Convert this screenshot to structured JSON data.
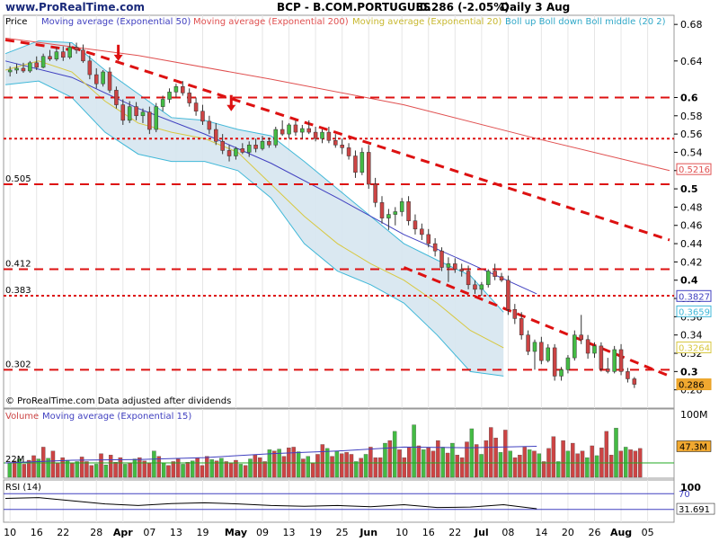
{
  "header": {
    "site": "www.ProRealTime.com",
    "title": "BCP - B.COM.PORTUGUES",
    "last": "0.286 (-2.05%)",
    "period": "Daily 3 Aug"
  },
  "footer_note": "© ProRealTime.com  Data adjusted after dividends",
  "colors": {
    "candle_up": "#44bb44",
    "candle_down": "#cc4444",
    "ema50": "#4040c0",
    "ema200": "#e05050",
    "ema20": "#d8c840",
    "bollinger": "#40b8d8",
    "band_fill": "#d6e6f0",
    "support_line": "#dd1111",
    "grid_panel": "#c8c8c8"
  },
  "chart_data": [
    {
      "type": "candlestick",
      "panel": "price",
      "title": "BCP - B.COM.PORTUGUES",
      "legend": [
        "Price",
        "Moving average (Exponential 50)",
        "Moving average (Exponential 200)",
        "Moving average (Exponential 20)",
        "Boll up Boll down Boll middle (20 2)"
      ],
      "ylim": [
        0.26,
        0.69
      ],
      "yticks": [
        0.68,
        0.64,
        0.6,
        0.58,
        0.56,
        0.54,
        0.52,
        0.5,
        0.48,
        0.46,
        0.44,
        0.42,
        0.4,
        0.38,
        0.36,
        0.34,
        0.32,
        0.3,
        0.28
      ],
      "ytick_labels": [
        "0.68",
        "0.64",
        "0.6",
        "0.58",
        "0.56",
        "0.54",
        "0.52",
        "0.5",
        "0.48",
        "0.46",
        "0.44",
        "0.42",
        "0.4",
        "0.38",
        "0.36",
        "0.34",
        "0.32",
        "0.3",
        "0.28"
      ],
      "xtick_labels": [
        "10",
        "16",
        "22",
        "28",
        "Apr",
        "07",
        "13",
        "19",
        "May",
        "09",
        "13",
        "19",
        "25",
        "Jun",
        "10",
        "16",
        "22",
        "Jul",
        "08",
        "14",
        "20",
        "26",
        "Aug",
        "05"
      ],
      "candles": [
        [
          0.628,
          0.634,
          0.623,
          0.63
        ],
        [
          0.63,
          0.637,
          0.626,
          0.632
        ],
        [
          0.632,
          0.638,
          0.627,
          0.629
        ],
        [
          0.629,
          0.64,
          0.627,
          0.638
        ],
        [
          0.638,
          0.645,
          0.63,
          0.633
        ],
        [
          0.633,
          0.648,
          0.632,
          0.645
        ],
        [
          0.645,
          0.652,
          0.64,
          0.642
        ],
        [
          0.642,
          0.655,
          0.64,
          0.65
        ],
        [
          0.65,
          0.656,
          0.64,
          0.644
        ],
        [
          0.644,
          0.66,
          0.642,
          0.655
        ],
        [
          0.655,
          0.66,
          0.648,
          0.652
        ],
        [
          0.652,
          0.658,
          0.638,
          0.64
        ],
        [
          0.64,
          0.646,
          0.62,
          0.625
        ],
        [
          0.625,
          0.632,
          0.61,
          0.615
        ],
        [
          0.615,
          0.63,
          0.612,
          0.628
        ],
        [
          0.628,
          0.633,
          0.605,
          0.608
        ],
        [
          0.608,
          0.612,
          0.588,
          0.592
        ],
        [
          0.592,
          0.598,
          0.57,
          0.575
        ],
        [
          0.575,
          0.596,
          0.572,
          0.59
        ],
        [
          0.59,
          0.595,
          0.575,
          0.58
        ],
        [
          0.58,
          0.588,
          0.572,
          0.584
        ],
        [
          0.584,
          0.59,
          0.56,
          0.565
        ],
        [
          0.565,
          0.594,
          0.562,
          0.59
        ],
        [
          0.59,
          0.602,
          0.585,
          0.598
        ],
        [
          0.598,
          0.61,
          0.594,
          0.606
        ],
        [
          0.606,
          0.615,
          0.6,
          0.612
        ],
        [
          0.612,
          0.618,
          0.602,
          0.605
        ],
        [
          0.605,
          0.61,
          0.59,
          0.594
        ],
        [
          0.594,
          0.6,
          0.58,
          0.585
        ],
        [
          0.585,
          0.592,
          0.57,
          0.574
        ],
        [
          0.574,
          0.58,
          0.56,
          0.565
        ],
        [
          0.565,
          0.572,
          0.548,
          0.552
        ],
        [
          0.552,
          0.56,
          0.538,
          0.542
        ],
        [
          0.542,
          0.548,
          0.53,
          0.536
        ],
        [
          0.536,
          0.546,
          0.532,
          0.544
        ],
        [
          0.544,
          0.55,
          0.538,
          0.54
        ],
        [
          0.54,
          0.552,
          0.535,
          0.548
        ],
        [
          0.548,
          0.555,
          0.54,
          0.544
        ],
        [
          0.544,
          0.558,
          0.542,
          0.552
        ],
        [
          0.552,
          0.556,
          0.545,
          0.548
        ],
        [
          0.548,
          0.568,
          0.545,
          0.565
        ],
        [
          0.565,
          0.575,
          0.558,
          0.56
        ],
        [
          0.56,
          0.572,
          0.555,
          0.57
        ],
        [
          0.57,
          0.575,
          0.558,
          0.562
        ],
        [
          0.562,
          0.57,
          0.555,
          0.566
        ],
        [
          0.566,
          0.575,
          0.56,
          0.562
        ],
        [
          0.562,
          0.568,
          0.552,
          0.555
        ],
        [
          0.555,
          0.565,
          0.55,
          0.562
        ],
        [
          0.562,
          0.568,
          0.55,
          0.553
        ],
        [
          0.553,
          0.56,
          0.545,
          0.548
        ],
        [
          0.548,
          0.555,
          0.538,
          0.545
        ],
        [
          0.545,
          0.55,
          0.532,
          0.536
        ],
        [
          0.536,
          0.542,
          0.512,
          0.518
        ],
        [
          0.518,
          0.545,
          0.515,
          0.54
        ],
        [
          0.54,
          0.548,
          0.5,
          0.505
        ],
        [
          0.505,
          0.512,
          0.48,
          0.485
        ],
        [
          0.485,
          0.492,
          0.462,
          0.468
        ],
        [
          0.468,
          0.478,
          0.455,
          0.472
        ],
        [
          0.472,
          0.48,
          0.46,
          0.475
        ],
        [
          0.475,
          0.49,
          0.47,
          0.486
        ],
        [
          0.486,
          0.492,
          0.46,
          0.465
        ],
        [
          0.465,
          0.472,
          0.45,
          0.456
        ],
        [
          0.456,
          0.462,
          0.444,
          0.45
        ],
        [
          0.45,
          0.456,
          0.436,
          0.44
        ],
        [
          0.44,
          0.446,
          0.426,
          0.432
        ],
        [
          0.432,
          0.436,
          0.41,
          0.414
        ],
        [
          0.414,
          0.425,
          0.398,
          0.418
        ],
        [
          0.418,
          0.424,
          0.408,
          0.412
        ],
        [
          0.412,
          0.418,
          0.404,
          0.41
        ],
        [
          0.41,
          0.416,
          0.39,
          0.395
        ],
        [
          0.395,
          0.4,
          0.385,
          0.39
        ],
        [
          0.39,
          0.398,
          0.383,
          0.395
        ],
        [
          0.395,
          0.412,
          0.392,
          0.41
        ],
        [
          0.41,
          0.418,
          0.4,
          0.404
        ],
        [
          0.404,
          0.408,
          0.398,
          0.4
        ],
        [
          0.4,
          0.405,
          0.362,
          0.368
        ],
        [
          0.368,
          0.374,
          0.352,
          0.358
        ],
        [
          0.358,
          0.365,
          0.335,
          0.34
        ],
        [
          0.34,
          0.345,
          0.318,
          0.322
        ],
        [
          0.322,
          0.335,
          0.302,
          0.332
        ],
        [
          0.332,
          0.338,
          0.308,
          0.312
        ],
        [
          0.312,
          0.33,
          0.31,
          0.326
        ],
        [
          0.326,
          0.33,
          0.29,
          0.295
        ],
        [
          0.295,
          0.305,
          0.29,
          0.302
        ],
        [
          0.302,
          0.318,
          0.298,
          0.315
        ],
        [
          0.315,
          0.345,
          0.312,
          0.34
        ],
        [
          0.34,
          0.362,
          0.33,
          0.335
        ],
        [
          0.335,
          0.34,
          0.314,
          0.32
        ],
        [
          0.32,
          0.332,
          0.315,
          0.328
        ],
        [
          0.328,
          0.332,
          0.3,
          0.303
        ],
        [
          0.303,
          0.315,
          0.298,
          0.3
        ],
        [
          0.3,
          0.328,
          0.298,
          0.324
        ],
        [
          0.324,
          0.33,
          0.296,
          0.3
        ],
        [
          0.3,
          0.304,
          0.288,
          0.292
        ],
        [
          0.292,
          0.294,
          0.282,
          0.286
        ]
      ],
      "ema50": [
        [
          0,
          0.64
        ],
        [
          20,
          0.622
        ],
        [
          40,
          0.588
        ],
        [
          60,
          0.56
        ],
        [
          80,
          0.528
        ],
        [
          100,
          0.49
        ],
        [
          120,
          0.45
        ],
        [
          140,
          0.418
        ],
        [
          160,
          0.385
        ]
      ],
      "ema200": [
        [
          0,
          0.665
        ],
        [
          40,
          0.646
        ],
        [
          80,
          0.62
        ],
        [
          120,
          0.592
        ],
        [
          160,
          0.555
        ],
        [
          200,
          0.52
        ]
      ],
      "ema20": [
        [
          0,
          0.63
        ],
        [
          10,
          0.64
        ],
        [
          20,
          0.628
        ],
        [
          30,
          0.596
        ],
        [
          40,
          0.572
        ],
        [
          50,
          0.562
        ],
        [
          60,
          0.555
        ],
        [
          70,
          0.54
        ],
        [
          80,
          0.505
        ],
        [
          90,
          0.47
        ],
        [
          100,
          0.44
        ],
        [
          110,
          0.418
        ],
        [
          120,
          0.4
        ],
        [
          130,
          0.375
        ],
        [
          140,
          0.345
        ],
        [
          150,
          0.326
        ]
      ],
      "boll_up": [
        [
          0,
          0.648
        ],
        [
          10,
          0.662
        ],
        [
          20,
          0.66
        ],
        [
          30,
          0.63
        ],
        [
          40,
          0.604
        ],
        [
          50,
          0.578
        ],
        [
          60,
          0.575
        ],
        [
          70,
          0.565
        ],
        [
          80,
          0.558
        ],
        [
          90,
          0.53
        ],
        [
          100,
          0.5
        ],
        [
          110,
          0.47
        ],
        [
          120,
          0.44
        ],
        [
          130,
          0.422
        ],
        [
          140,
          0.405
        ],
        [
          150,
          0.365
        ]
      ],
      "boll_down": [
        [
          0,
          0.614
        ],
        [
          10,
          0.618
        ],
        [
          20,
          0.6
        ],
        [
          30,
          0.562
        ],
        [
          40,
          0.538
        ],
        [
          50,
          0.53
        ],
        [
          60,
          0.53
        ],
        [
          70,
          0.52
        ],
        [
          80,
          0.49
        ],
        [
          90,
          0.44
        ],
        [
          100,
          0.41
        ],
        [
          110,
          0.395
        ],
        [
          120,
          0.375
        ],
        [
          130,
          0.34
        ],
        [
          140,
          0.3
        ],
        [
          150,
          0.295
        ]
      ],
      "hlines": [
        {
          "value": 0.6,
          "label": "",
          "style": "dash"
        },
        {
          "value": 0.555,
          "label": "",
          "style": "dot"
        },
        {
          "value": 0.505,
          "label": "0.505",
          "style": "dash"
        },
        {
          "value": 0.412,
          "label": "0.412",
          "style": "dash"
        },
        {
          "value": 0.383,
          "label": "0.383",
          "style": "dot"
        },
        {
          "value": 0.302,
          "label": "0.302",
          "style": "dash"
        }
      ],
      "trendlines": [
        [
          [
            0,
            0.663
          ],
          [
            20,
            0.652
          ]
        ],
        [
          [
            20,
            0.655
          ],
          [
            200,
            0.444
          ]
        ],
        [
          [
            120,
            0.414
          ],
          [
            200,
            0.295
          ]
        ]
      ],
      "arrows": [
        [
          34,
          0.64
        ],
        [
          68,
          0.585
        ]
      ],
      "value_tags": [
        {
          "value": 0.5216,
          "label": "0.5216",
          "color": "#e05050"
        },
        {
          "value": 0.3827,
          "label": "0.3827",
          "color": "#4040c0"
        },
        {
          "value": 0.3659,
          "label": "0.3659",
          "color": "#40b8d8"
        },
        {
          "value": 0.3264,
          "label": "0.3264",
          "color": "#d8c840"
        },
        {
          "value": 0.286,
          "label": "0.286",
          "color": "#e8a020"
        }
      ]
    },
    {
      "type": "bar",
      "panel": "volume",
      "legend": [
        "Volume",
        "Moving average (Exponential 15)"
      ],
      "ylim": [
        0,
        100
      ],
      "unit": "M",
      "yticks": [
        100
      ],
      "ytick_labels": [
        "100M"
      ],
      "level_label": "22M",
      "level_value": 22,
      "last_tag": "47.3M",
      "values": [
        22,
        25,
        28,
        20,
        26,
        33,
        28,
        46,
        29,
        40,
        22,
        30,
        26,
        22,
        24,
        31,
        24,
        18,
        20,
        36,
        19,
        34,
        23,
        30,
        20,
        22,
        28,
        30,
        25,
        22,
        40,
        32,
        22,
        18,
        24,
        28,
        20,
        23,
        25,
        30,
        18,
        32,
        27,
        25,
        29,
        24,
        22,
        26,
        20,
        18,
        28,
        34,
        30,
        24,
        42,
        40,
        43,
        32,
        45,
        46,
        39,
        28,
        32,
        22,
        35,
        50,
        44,
        32,
        40,
        36,
        38,
        35,
        24,
        29,
        35,
        46,
        30,
        30,
        52,
        56,
        70,
        42,
        30,
        46,
        80,
        48,
        42,
        45,
        40,
        56,
        46,
        37,
        52,
        34,
        30,
        54,
        74,
        50,
        35,
        56,
        76,
        60,
        38,
        72,
        40,
        30,
        34,
        46,
        42,
        40,
        36,
        24,
        44,
        62,
        24,
        56,
        40,
        52,
        36,
        40,
        30,
        48,
        33,
        45,
        70,
        34,
        75,
        40,
        46,
        42,
        40,
        44
      ],
      "ema15": [
        [
          0,
          22
        ],
        [
          20,
          26
        ],
        [
          40,
          27
        ],
        [
          60,
          30
        ],
        [
          80,
          36
        ],
        [
          100,
          40
        ],
        [
          120,
          46
        ],
        [
          140,
          45
        ],
        [
          160,
          47.3
        ]
      ]
    },
    {
      "type": "line",
      "panel": "rsi",
      "legend": [
        "RSI (14)"
      ],
      "ylim": [
        0,
        100
      ],
      "levels": [
        70,
        30
      ],
      "ytick_labels": [
        "70",
        "30"
      ],
      "last_tag": "31.691",
      "values": [
        [
          0,
          58
        ],
        [
          10,
          60
        ],
        [
          20,
          52
        ],
        [
          30,
          44
        ],
        [
          40,
          40
        ],
        [
          50,
          45
        ],
        [
          60,
          47
        ],
        [
          70,
          44
        ],
        [
          80,
          40
        ],
        [
          90,
          38
        ],
        [
          100,
          40
        ],
        [
          110,
          37
        ],
        [
          120,
          42
        ],
        [
          130,
          35
        ],
        [
          140,
          36
        ],
        [
          150,
          42
        ],
        [
          160,
          31.691
        ]
      ]
    }
  ]
}
